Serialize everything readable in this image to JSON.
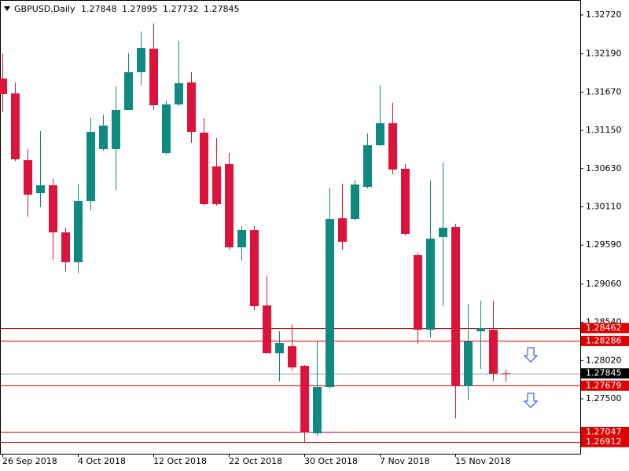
{
  "chart_data": {
    "type": "candlestick",
    "title": "GBPUSD,Daily",
    "categories": [
      "26 Sep 2018",
      null,
      null,
      null,
      null,
      null,
      "4 Oct 2018",
      null,
      null,
      null,
      null,
      null,
      "12 Oct 2018",
      null,
      null,
      null,
      null,
      null,
      "22 Oct 2018",
      null,
      null,
      null,
      null,
      null,
      "30 Oct 2018",
      null,
      null,
      null,
      null,
      null,
      "7 Nov 2018",
      null,
      null,
      null,
      null,
      null,
      "15 Nov 2018",
      null,
      null,
      null,
      null
    ],
    "open": [
      1.31855,
      1.31653,
      1.30745,
      1.30297,
      1.30404,
      1.29763,
      1.29357,
      1.3019,
      1.30895,
      1.30895,
      1.31428,
      1.31941,
      1.32261,
      1.30841,
      1.31503,
      1.31802,
      1.31119,
      1.3066,
      1.30692,
      1.2956,
      1.29795,
      1.2877,
      1.28119,
      1.28215,
      1.27948,
      1.2703,
      1.2766,
      1.29955,
      1.29945,
      1.30382,
      1.30948,
      1.31247,
      1.30628,
      1.29453,
      1.28439,
      1.29699,
      1.29838,
      1.27671,
      1.28418,
      1.28439,
      1.27848
    ],
    "high": [
      1.32197,
      1.31802,
      1.30895,
      1.3114,
      1.30489,
      1.29827,
      1.30425,
      1.31322,
      1.31364,
      1.31749,
      1.32197,
      1.32496,
      1.32603,
      1.31556,
      1.32368,
      1.31941,
      1.31322,
      1.31044,
      1.30841,
      1.29848,
      1.29848,
      1.29165,
      1.28418,
      1.28514,
      1.27959,
      1.28279,
      1.30372,
      1.30425,
      1.30478,
      1.31108,
      1.31759,
      1.31524,
      1.30692,
      1.29486,
      1.30468,
      1.30713,
      1.2988,
      1.28792,
      1.28834,
      1.28834,
      1.27895
    ],
    "low": [
      1.31396,
      1.30734,
      1.29977,
      1.30105,
      1.29389,
      1.29229,
      1.29208,
      1.30062,
      1.30873,
      1.3034,
      1.31428,
      1.3177,
      1.31428,
      1.3082,
      1.31482,
      1.3098,
      1.30126,
      1.30126,
      1.29528,
      1.29379,
      1.28706,
      1.28119,
      1.27735,
      1.27884,
      1.26913,
      1.26998,
      1.27639,
      1.29528,
      1.29923,
      1.30361,
      1.30937,
      1.30553,
      1.2972,
      1.28247,
      1.28333,
      1.2876,
      1.27233,
      1.27479,
      1.27906,
      1.27745,
      1.27732
    ],
    "close": [
      1.31642,
      1.30756,
      1.30275,
      1.30404,
      1.29763,
      1.29357,
      1.3019,
      1.31129,
      1.31215,
      1.31428,
      1.31941,
      1.32272,
      1.31492,
      1.31503,
      1.31791,
      1.31129,
      1.30147,
      1.30147,
      1.2956,
      1.29795,
      1.2876,
      1.28119,
      1.28258,
      1.27927,
      1.27041,
      1.2766,
      1.29945,
      1.29635,
      1.30414,
      1.30948,
      1.31247,
      1.30617,
      1.29742,
      1.28439,
      1.29678,
      1.29827,
      1.27671,
      1.28279,
      1.28461,
      1.27842,
      1.27845
    ],
    "up_color": "#0e8a80",
    "down_color": "#dc143c",
    "ylim": [
      1.26753,
      1.32923
    ],
    "yticks": [
      {
        "value": 1.3272,
        "label": "1.32720"
      },
      {
        "value": 1.3219,
        "label": "1.32190"
      },
      {
        "value": 1.3167,
        "label": "1.31670"
      },
      {
        "value": 1.3115,
        "label": "1.31150"
      },
      {
        "value": 1.3063,
        "label": "1.30630"
      },
      {
        "value": 1.3011,
        "label": "1.30110"
      },
      {
        "value": 1.2959,
        "label": "1.29590"
      },
      {
        "value": 1.2906,
        "label": "1.29060"
      },
      {
        "value": 1.2854,
        "label": "1.28540"
      },
      {
        "value": 1.2802,
        "label": "1.28020"
      },
      {
        "value": 1.275,
        "label": "1.27500"
      }
    ],
    "levels": [
      1.28462,
      1.28286,
      1.27679,
      1.27047,
      1.26912
    ],
    "level_color": "#e00000",
    "price_line_color": "#7fa3a3"
  }
}
